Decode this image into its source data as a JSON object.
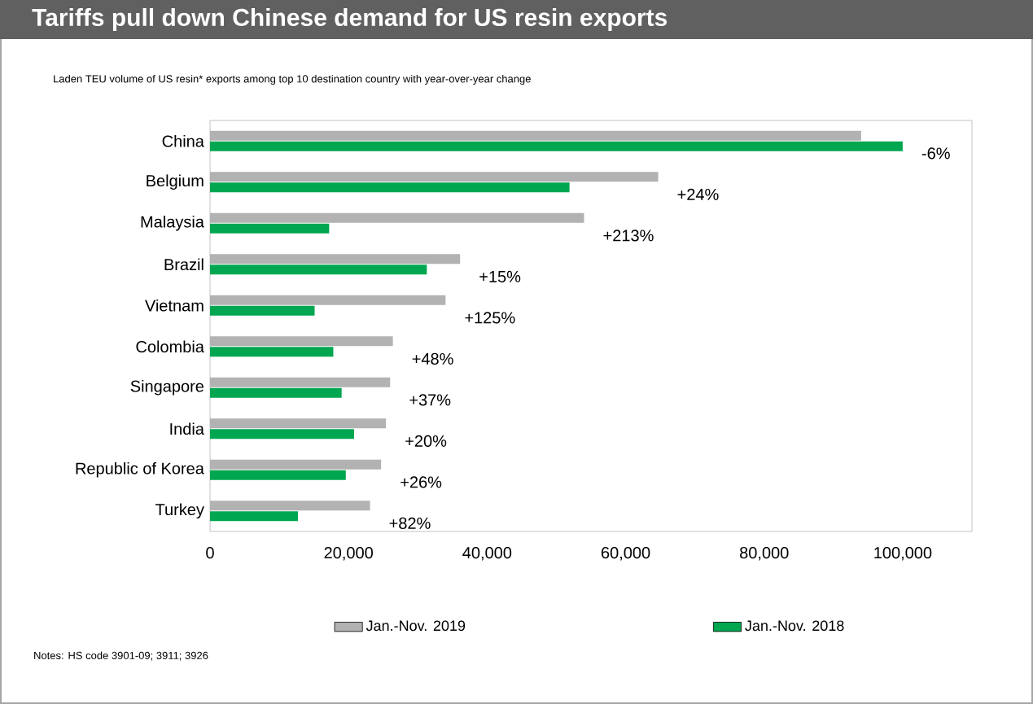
{
  "chart_data": {
    "type": "bar",
    "orientation": "horizontal",
    "title": "Tariffs pull down Chinese demand for US resin exports",
    "subtitle": "Laden TEU volume of US resin* exports among top 10 destination country with year-over-year change",
    "categories": [
      "China",
      "Belgium",
      "Malaysia",
      "Brazil",
      "Vietnam",
      "Colombia",
      "Singapore",
      "India",
      "Republic of Korea",
      "Turkey"
    ],
    "series": [
      {
        "name": "Jan.-Nov. 2019",
        "color": "#b2b2b2",
        "values": [
          94000,
          64700,
          54000,
          36100,
          34000,
          26400,
          26000,
          25400,
          24700,
          23100
        ]
      },
      {
        "name": "Jan.-Nov. 2018",
        "color": "#00a650",
        "values": [
          100000,
          51900,
          17200,
          31300,
          15100,
          17800,
          19000,
          20800,
          19600,
          12700
        ]
      }
    ],
    "xlim": [
      0,
      110000
    ],
    "xticks": [
      0,
      {
        "value": 20000,
        "label": "20,000"
      },
      {
        "value": 40000,
        "label": "40,000"
      },
      {
        "value": 60000,
        "label": "60,000"
      },
      {
        "value": 80000,
        "label": "80,000"
      },
      {
        "value": 100000,
        "label": "100,000"
      }
    ],
    "legend": "bottom",
    "annotations": [
      "-6%",
      "+24%",
      "+213%",
      "+15%",
      "+125%",
      "+48%",
      "+37%",
      "+20%",
      "+26%",
      "+82%",
      "Notes: HS code 3901-09; 3911; 3926"
    ]
  }
}
